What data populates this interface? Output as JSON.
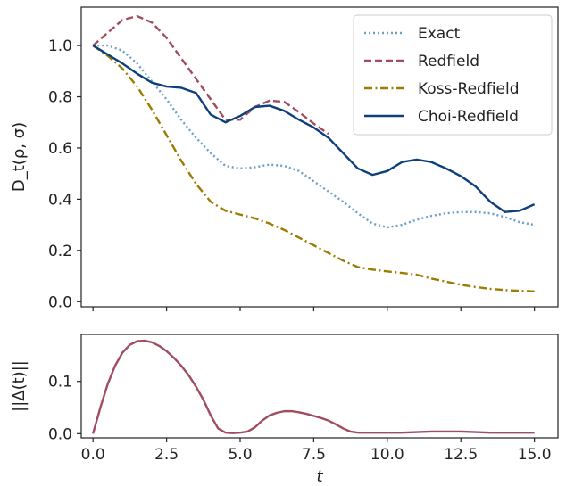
{
  "chart_data": [
    {
      "type": "line",
      "ylabel": "D_t(ρ, σ)",
      "xlim": [
        -0.4,
        15.8
      ],
      "ylim": [
        -0.02,
        1.15
      ],
      "xticks": [
        0.0,
        2.5,
        5.0,
        7.5,
        10.0,
        12.5,
        15.0
      ],
      "yticks": [
        0.0,
        0.2,
        0.4,
        0.6,
        0.8,
        1.0
      ],
      "ytick_labels": [
        "0.0",
        "0.2",
        "0.4",
        "0.6",
        "0.8",
        "1.0"
      ],
      "grid": false,
      "legend": "top-right",
      "series": [
        {
          "name": "Exact",
          "color": "#6e9ec8",
          "dash": "dotted",
          "x": [
            0,
            0.5,
            1,
            1.5,
            2,
            2.5,
            3,
            3.5,
            4,
            4.5,
            5,
            5.5,
            6,
            6.5,
            7,
            7.5,
            8,
            8.5,
            9,
            9.5,
            10,
            10.5,
            11,
            11.5,
            12,
            12.5,
            13,
            13.5,
            14,
            14.5,
            15
          ],
          "y": [
            1.0,
            1.0,
            0.98,
            0.93,
            0.86,
            0.79,
            0.71,
            0.64,
            0.58,
            0.53,
            0.52,
            0.525,
            0.535,
            0.53,
            0.51,
            0.47,
            0.43,
            0.39,
            0.345,
            0.305,
            0.29,
            0.3,
            0.32,
            0.335,
            0.345,
            0.35,
            0.35,
            0.345,
            0.33,
            0.31,
            0.3
          ]
        },
        {
          "name": "Redfield",
          "color": "#a14d60",
          "dash": "dashed",
          "x": [
            0,
            0.5,
            1,
            1.5,
            2,
            2.5,
            3,
            3.5,
            4,
            4.5,
            5,
            5.5,
            6,
            6.5,
            7,
            7.5,
            8
          ],
          "y": [
            1.0,
            1.05,
            1.1,
            1.115,
            1.09,
            1.03,
            0.95,
            0.87,
            0.79,
            0.71,
            0.71,
            0.76,
            0.785,
            0.78,
            0.74,
            0.695,
            0.655
          ]
        },
        {
          "name": "Koss-Redfield",
          "color": "#9c7c00",
          "dash": "dashdot",
          "x": [
            0,
            0.5,
            1,
            1.5,
            2,
            2.5,
            3,
            3.5,
            4,
            4.5,
            5,
            5.5,
            6,
            6.5,
            7,
            7.5,
            8,
            8.5,
            9,
            9.5,
            10,
            10.5,
            11,
            11.5,
            12,
            12.5,
            13,
            13.5,
            14,
            14.5,
            15
          ],
          "y": [
            1.0,
            0.96,
            0.91,
            0.84,
            0.75,
            0.65,
            0.55,
            0.46,
            0.39,
            0.355,
            0.34,
            0.325,
            0.305,
            0.28,
            0.25,
            0.22,
            0.19,
            0.16,
            0.135,
            0.125,
            0.118,
            0.112,
            0.105,
            0.09,
            0.078,
            0.066,
            0.057,
            0.05,
            0.045,
            0.042,
            0.04
          ]
        },
        {
          "name": "Choi-Redfield",
          "color": "#0d3f7c",
          "dash": "solid",
          "x": [
            0,
            0.5,
            1,
            1.5,
            2,
            2.5,
            3,
            3.5,
            4,
            4.5,
            5,
            5.5,
            6,
            6.5,
            7,
            7.5,
            8,
            8.5,
            9,
            9.5,
            10,
            10.5,
            11,
            11.5,
            12,
            12.5,
            13,
            13.5,
            14,
            14.5,
            15
          ],
          "y": [
            1.0,
            0.965,
            0.93,
            0.89,
            0.855,
            0.84,
            0.835,
            0.815,
            0.73,
            0.7,
            0.725,
            0.76,
            0.765,
            0.745,
            0.71,
            0.68,
            0.64,
            0.58,
            0.52,
            0.495,
            0.51,
            0.545,
            0.555,
            0.545,
            0.52,
            0.49,
            0.45,
            0.39,
            0.35,
            0.355,
            0.38
          ]
        }
      ]
    },
    {
      "type": "line",
      "xlabel": "t",
      "ylabel": "||Δ(t)||",
      "xlim": [
        -0.4,
        15.8
      ],
      "ylim": [
        -0.008,
        0.19
      ],
      "xticks": [
        0.0,
        2.5,
        5.0,
        7.5,
        10.0,
        12.5,
        15.0
      ],
      "xtick_labels": [
        "0.0",
        "2.5",
        "5.0",
        "7.5",
        "10.0",
        "12.5",
        "15.0"
      ],
      "yticks": [
        0.0,
        0.1
      ],
      "ytick_labels": [
        "0.0",
        "0.1"
      ],
      "grid": false,
      "series": [
        {
          "color": "#a14d60",
          "dash": "solid",
          "x": [
            0,
            0.25,
            0.5,
            0.75,
            1,
            1.25,
            1.5,
            1.75,
            2,
            2.25,
            2.5,
            2.75,
            3,
            3.25,
            3.5,
            3.75,
            4,
            4.25,
            4.5,
            4.75,
            5,
            5.25,
            5.5,
            5.75,
            6,
            6.25,
            6.5,
            6.75,
            7,
            7.25,
            7.5,
            7.75,
            8,
            8.25,
            8.5,
            8.75,
            9,
            9.5,
            10,
            10.5,
            11,
            11.5,
            12,
            12.5,
            13,
            13.5,
            14,
            14.5,
            15
          ],
          "y": [
            0.0,
            0.05,
            0.095,
            0.13,
            0.155,
            0.17,
            0.177,
            0.178,
            0.175,
            0.168,
            0.158,
            0.145,
            0.13,
            0.112,
            0.09,
            0.065,
            0.035,
            0.01,
            0.002,
            0.001,
            0.002,
            0.004,
            0.012,
            0.025,
            0.035,
            0.04,
            0.043,
            0.043,
            0.041,
            0.038,
            0.034,
            0.03,
            0.025,
            0.018,
            0.01,
            0.004,
            0.002,
            0.002,
            0.002,
            0.002,
            0.003,
            0.004,
            0.004,
            0.004,
            0.003,
            0.002,
            0.002,
            0.002,
            0.002
          ]
        }
      ]
    }
  ]
}
